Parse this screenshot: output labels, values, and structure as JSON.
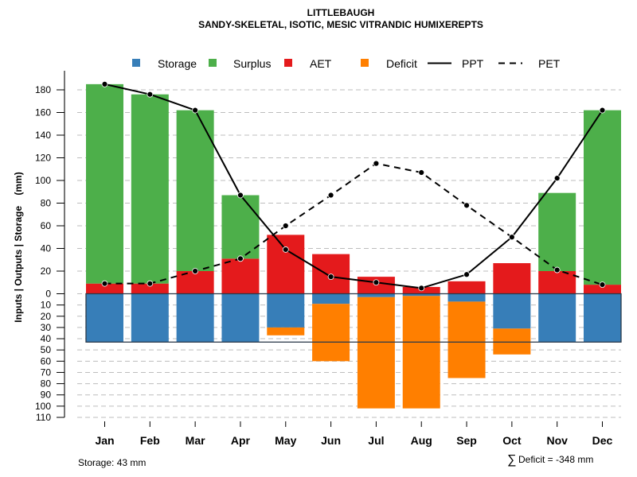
{
  "chart_data": {
    "type": "bar",
    "title": "LITTLEBAUGH",
    "subtitle": "SANDY-SKELETAL, ISOTIC, MESIC VITRANDIC HUMIXEREPTS",
    "xlabel": "",
    "ylabel": "Inputs | Outputs | Storage    (mm)",
    "categories": [
      "Jan",
      "Feb",
      "Mar",
      "Apr",
      "May",
      "Jun",
      "Jul",
      "Aug",
      "Sep",
      "Oct",
      "Nov",
      "Dec"
    ],
    "upper_axis": {
      "ylim": [
        0,
        180
      ],
      "ticks": [
        0,
        20,
        40,
        60,
        80,
        100,
        120,
        140,
        160,
        180
      ]
    },
    "lower_axis": {
      "ylim": [
        0,
        110
      ],
      "ticks": [
        10,
        20,
        30,
        40,
        50,
        60,
        70,
        80,
        90,
        100,
        110
      ]
    },
    "grid": true,
    "legend_position": "top",
    "legend": [
      {
        "name": "Storage",
        "kind": "box",
        "color": "#377EB8"
      },
      {
        "name": "Surplus",
        "kind": "box",
        "color": "#4DAF4A"
      },
      {
        "name": "AET",
        "kind": "box",
        "color": "#E41A1C"
      },
      {
        "name": "Deficit",
        "kind": "box",
        "color": "#FF7F00"
      },
      {
        "name": "PPT",
        "kind": "solid-line",
        "color": "#000000"
      },
      {
        "name": "PET",
        "kind": "dashed-line",
        "color": "#000000"
      }
    ],
    "series": [
      {
        "name": "AET",
        "stack": "upper",
        "color": "#E41A1C",
        "values": [
          9,
          9,
          20,
          31,
          52,
          35,
          15,
          6,
          11,
          27,
          20,
          8
        ]
      },
      {
        "name": "Surplus",
        "stack": "upper",
        "color": "#4DAF4A",
        "values": [
          176,
          167,
          142,
          56,
          0,
          0,
          0,
          0,
          0,
          0,
          69,
          154
        ]
      },
      {
        "name": "Storage",
        "stack": "lower",
        "color": "#377EB8",
        "values": [
          43,
          43,
          43,
          43,
          30,
          9,
          3,
          2,
          7,
          31,
          43,
          43
        ]
      },
      {
        "name": "Deficit",
        "stack": "lower",
        "color": "#FF7F00",
        "values": [
          0,
          0,
          0,
          0,
          7,
          51,
          99,
          100,
          68,
          23,
          0,
          0
        ]
      },
      {
        "name": "PPT",
        "type": "line",
        "style": "solid",
        "color": "#000000",
        "values": [
          185,
          176,
          162,
          87,
          39,
          15,
          10,
          5,
          17,
          50,
          102,
          162
        ]
      },
      {
        "name": "PET",
        "type": "line",
        "style": "dashed",
        "color": "#000000",
        "values": [
          9,
          9,
          20,
          31,
          60,
          87,
          115,
          107,
          78,
          50,
          21,
          8
        ]
      }
    ],
    "storage_capacity": 43,
    "annotations": {
      "storage": "Storage: 43 mm",
      "deficit_sum_symbol": "∑",
      "deficit_sum": "Deficit = -348 mm"
    }
  }
}
